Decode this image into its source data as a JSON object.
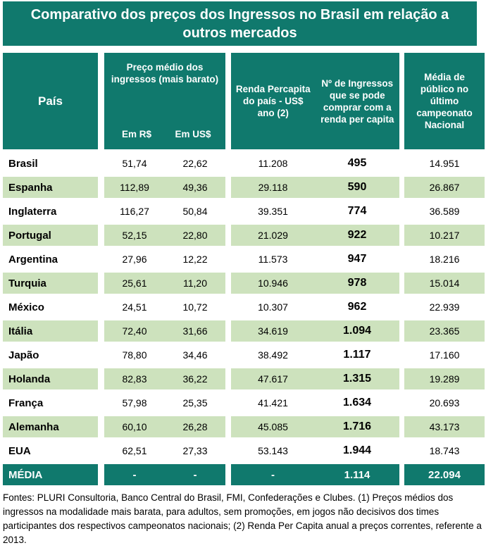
{
  "title": "Comparativo dos preços dos Ingressos no Brasil em relação a outros mercados",
  "header": {
    "pais": "País",
    "preco_medio": "Preço médio dos ingressos (mais barato)",
    "em_rs": "Em R$",
    "em_uss": "Em US$",
    "renda_percapita": "Renda Percapita do país - US$ ano (2)",
    "num_ingressos": "Nº de Ingressos que se pode comprar com a renda per capita",
    "media_publico": "Média de público no último campeonato Nacional"
  },
  "chart_data": {
    "type": "table",
    "title": "Comparativo dos preços dos Ingressos no Brasil em relação a outros mercados",
    "columns": [
      "País",
      "Preço médio dos ingressos (mais barato) - Em R$",
      "Preço médio dos ingressos (mais barato) - Em US$",
      "Renda Percapita do país - US$ ano (2)",
      "Nº de Ingressos que se pode comprar com a renda per capita",
      "Média de público no último campeonato Nacional"
    ],
    "rows": [
      {
        "pais": "Brasil",
        "em_rs": "51,74",
        "em_uss": "22,62",
        "renda": "11.208",
        "ingressos": "495",
        "publico": "14.951"
      },
      {
        "pais": "Espanha",
        "em_rs": "112,89",
        "em_uss": "49,36",
        "renda": "29.118",
        "ingressos": "590",
        "publico": "26.867"
      },
      {
        "pais": "Inglaterra",
        "em_rs": "116,27",
        "em_uss": "50,84",
        "renda": "39.351",
        "ingressos": "774",
        "publico": "36.589"
      },
      {
        "pais": "Portugal",
        "em_rs": "52,15",
        "em_uss": "22,80",
        "renda": "21.029",
        "ingressos": "922",
        "publico": "10.217"
      },
      {
        "pais": "Argentina",
        "em_rs": "27,96",
        "em_uss": "12,22",
        "renda": "11.573",
        "ingressos": "947",
        "publico": "18.216"
      },
      {
        "pais": "Turquia",
        "em_rs": "25,61",
        "em_uss": "11,20",
        "renda": "10.946",
        "ingressos": "978",
        "publico": "15.014"
      },
      {
        "pais": "México",
        "em_rs": "24,51",
        "em_uss": "10,72",
        "renda": "10.307",
        "ingressos": "962",
        "publico": "22.939"
      },
      {
        "pais": "Itália",
        "em_rs": "72,40",
        "em_uss": "31,66",
        "renda": "34.619",
        "ingressos": "1.094",
        "publico": "23.365"
      },
      {
        "pais": "Japão",
        "em_rs": "78,80",
        "em_uss": "34,46",
        "renda": "38.492",
        "ingressos": "1.117",
        "publico": "17.160"
      },
      {
        "pais": "Holanda",
        "em_rs": "82,83",
        "em_uss": "36,22",
        "renda": "47.617",
        "ingressos": "1.315",
        "publico": "19.289"
      },
      {
        "pais": "França",
        "em_rs": "57,98",
        "em_uss": "25,35",
        "renda": "41.421",
        "ingressos": "1.634",
        "publico": "20.693"
      },
      {
        "pais": "Alemanha",
        "em_rs": "60,10",
        "em_uss": "26,28",
        "renda": "45.085",
        "ingressos": "1.716",
        "publico": "43.173"
      },
      {
        "pais": "EUA",
        "em_rs": "62,51",
        "em_uss": "27,33",
        "renda": "53.143",
        "ingressos": "1.944",
        "publico": "18.743"
      }
    ],
    "media_row": {
      "pais": "MÉDIA",
      "em_rs": "-",
      "em_uss": "-",
      "renda": "-",
      "ingressos": "1.114",
      "publico": "22.094"
    }
  },
  "footer": {
    "text": "Fontes: PLURI Consultoria, Banco Central do Brasil, FMI, Confederações e Clubes. (1) Preços médios dos ingressos na modalidade mais barata, para adultos, sem promoções, em jogos não decisivos dos times participantes dos respectivos campeonatos nacionais; (2) Renda Per Capita anual a preços correntes, referente a 2013."
  },
  "colors": {
    "teal": "#10796D",
    "light_green": "#CDE2BD",
    "text": "#000000",
    "background": "#FFFFFF"
  }
}
